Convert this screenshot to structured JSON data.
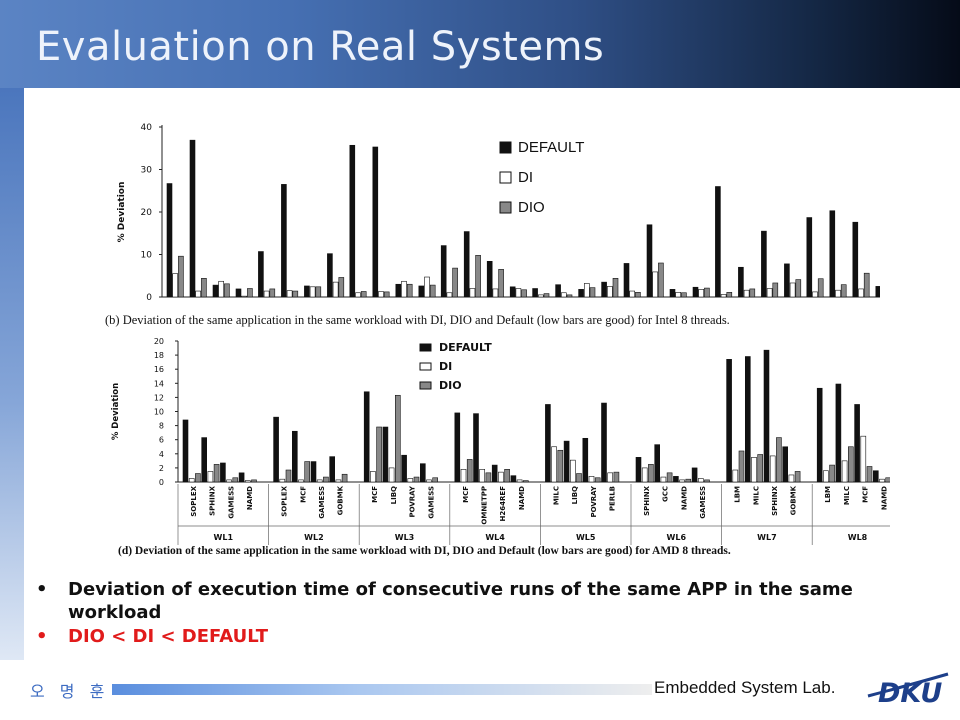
{
  "slide": {
    "title": "Evaluation on Real Systems",
    "bullets": [
      {
        "marker": "•",
        "text": "Deviation of execution time of consecutive runs of the same APP in the same workload",
        "color": "#111111"
      },
      {
        "marker": "•",
        "text": "DIO < DI < DEFAULT",
        "color": "#e11b1b"
      }
    ],
    "footer": {
      "author": "오 명 훈",
      "lab": "Embedded System Lab.",
      "logo_text": "DKU"
    }
  },
  "chart_data": [
    {
      "type": "bar",
      "title": "",
      "ylabel": "% Deviation",
      "ylim": [
        0,
        40
      ],
      "yticks": [
        0,
        10,
        20,
        30,
        40
      ],
      "caption": "(b)  Deviation of the same application in the same workload with DI, DIO and Default (low bars are good) for Intel 8 threads.",
      "legend": {
        "placement": "top-right"
      },
      "series": [
        {
          "name": "DEFAULT",
          "color": "#111111"
        },
        {
          "name": "DI",
          "color": "#ffffff"
        },
        {
          "name": "DIO",
          "color": "#888888"
        }
      ],
      "groups": [
        [
          [
            26.7,
            5.5,
            9.6
          ],
          [
            36.9,
            1.4,
            4.4
          ],
          [
            2.8,
            3.7,
            3.1
          ],
          [
            1.9,
            0.2,
            2.0
          ]
        ],
        [
          [
            10.7,
            1.4,
            1.9
          ],
          [
            26.5,
            1.5,
            1.4
          ],
          [
            2.6,
            2.4,
            2.4
          ],
          [
            10.2,
            3.5,
            4.6
          ]
        ],
        [
          [
            35.7,
            1.0,
            1.3
          ],
          [
            35.3,
            1.3,
            1.2
          ],
          [
            3.0,
            3.7,
            3.0
          ],
          [
            2.6,
            4.7,
            2.8
          ]
        ],
        [
          [
            12.1,
            1.0,
            6.8
          ],
          [
            15.4,
            2.0,
            9.8
          ],
          [
            8.4,
            1.9,
            6.5
          ],
          [
            2.4,
            2.0,
            1.7
          ]
        ],
        [
          [
            2.0,
            0.5,
            0.8
          ],
          [
            2.9,
            1.0,
            0.5
          ],
          [
            1.8,
            3.2,
            2.2
          ],
          [
            3.5,
            2.5,
            4.4
          ]
        ],
        [
          [
            7.9,
            1.4,
            1.1
          ],
          [
            17.0,
            5.9,
            8.0
          ],
          [
            1.8,
            1.1,
            1.0
          ],
          [
            2.3,
            1.8,
            2.1
          ]
        ],
        [
          [
            26.0,
            0.6,
            1.1
          ],
          [
            7.0,
            1.6,
            1.9
          ],
          [
            15.5,
            2.0,
            3.3
          ],
          [
            7.8,
            3.3,
            4.1
          ]
        ],
        [
          [
            18.7,
            1.2,
            4.3
          ],
          [
            20.3,
            1.6,
            2.9
          ],
          [
            17.6,
            1.9,
            5.6
          ],
          [
            2.5,
            1.7,
            1.9
          ]
        ]
      ]
    },
    {
      "type": "bar",
      "title": "",
      "ylabel": "% Deviation",
      "ylim": [
        0,
        20
      ],
      "yticks": [
        0,
        2,
        4,
        6,
        8,
        10,
        12,
        14,
        16,
        18,
        20
      ],
      "caption": "(d)  Deviation of the same application in the same workload with DI, DIO and Default (low bars are good) for AMD 8 threads.",
      "legend": {
        "placement": "top-center"
      },
      "series": [
        {
          "name": "DEFAULT",
          "color": "#111111"
        },
        {
          "name": "DI",
          "color": "#ffffff"
        },
        {
          "name": "DIO",
          "color": "#888888"
        }
      ],
      "workloads": [
        {
          "name": "WL1",
          "apps": [
            "SOPLEX",
            "SPHINX",
            "GAMESS",
            "NAMD"
          ],
          "values": [
            [
              8.8,
              0.5,
              1.2
            ],
            [
              6.3,
              1.5,
              2.5
            ],
            [
              2.7,
              0.3,
              0.6
            ],
            [
              1.3,
              0.2,
              0.3
            ]
          ]
        },
        {
          "name": "WL2",
          "apps": [
            "SOPLEX",
            "MCF",
            "GAMESS",
            "GOBMK"
          ],
          "values": [
            [
              9.2,
              0.4,
              1.7
            ],
            [
              7.2,
              0.3,
              2.9
            ],
            [
              2.9,
              0.3,
              0.7
            ],
            [
              3.6,
              0.3,
              1.1
            ]
          ]
        },
        {
          "name": "WL3",
          "apps": [
            "MCF",
            "LIBQ",
            "POVRAY",
            "GAMESS"
          ],
          "values": [
            [
              12.8,
              1.5,
              7.8
            ],
            [
              7.8,
              2.0,
              12.3
            ],
            [
              3.8,
              0.5,
              0.7
            ],
            [
              2.6,
              0.3,
              0.6
            ]
          ]
        },
        {
          "name": "WL4",
          "apps": [
            "MCF",
            "OMNETPP",
            "H264REF",
            "NAMD"
          ],
          "values": [
            [
              9.8,
              1.8,
              3.2
            ],
            [
              9.7,
              1.8,
              1.3
            ],
            [
              2.4,
              1.4,
              1.8
            ],
            [
              0.9,
              0.3,
              0.2
            ]
          ]
        },
        {
          "name": "WL5",
          "apps": [
            "MILC",
            "LIBQ",
            "POVRAY",
            "PERLB"
          ],
          "values": [
            [
              11.0,
              5.0,
              4.5
            ],
            [
              5.8,
              3.1,
              1.2
            ],
            [
              6.2,
              0.8,
              0.6
            ],
            [
              11.2,
              1.3,
              1.4
            ]
          ]
        },
        {
          "name": "WL6",
          "apps": [
            "SPHINX",
            "GCC",
            "NAMD",
            "GAMESS"
          ],
          "values": [
            [
              3.5,
              2.0,
              2.5
            ],
            [
              5.3,
              0.7,
              1.3
            ],
            [
              0.8,
              0.3,
              0.4
            ],
            [
              2.0,
              0.5,
              0.3
            ]
          ]
        },
        {
          "name": "WL7",
          "apps": [
            "LBM",
            "MILC",
            "SPHINX",
            "GOBMK"
          ],
          "values": [
            [
              17.4,
              1.7,
              4.4
            ],
            [
              17.8,
              3.5,
              3.9
            ],
            [
              18.7,
              3.7,
              6.3
            ],
            [
              5.0,
              1.0,
              1.5
            ]
          ]
        },
        {
          "name": "WL8",
          "apps": [
            "LBM",
            "MILC",
            "MCF",
            "NAMD"
          ],
          "values": [
            [
              13.3,
              1.6,
              2.4
            ],
            [
              13.9,
              3.0,
              5.0
            ],
            [
              11.0,
              6.5,
              2.2
            ],
            [
              1.6,
              0.4,
              0.6
            ]
          ]
        }
      ]
    }
  ]
}
